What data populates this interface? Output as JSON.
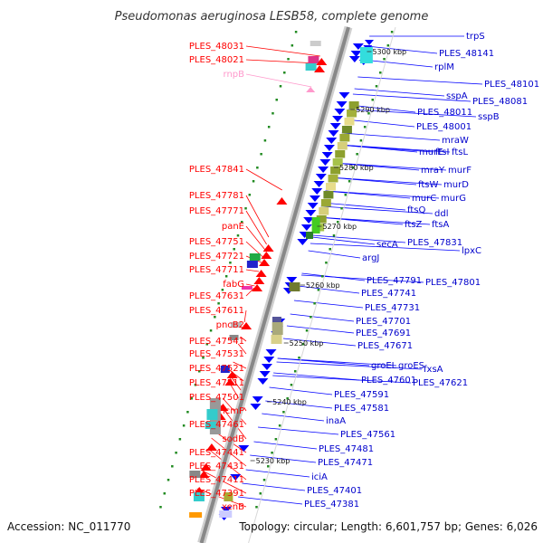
{
  "title": "Pseudomonas aeruginosa LESB58, complete genome",
  "footer": {
    "accession": "Accession: NC_011770",
    "topology": "Topology: circular; Length: 6,601,757 bp; Genes: 6,026"
  },
  "colors": {
    "forward_gene": "#ff0000",
    "reverse_gene": "#0000ff",
    "rna_gene": "#ff99cc",
    "backbone": "#888888",
    "tick": "#228b22"
  },
  "scale_labels": [
    "5300 kbp",
    "5290 kbp",
    "5280 kbp",
    "5270 kbp",
    "5260 kbp",
    "5250 kbp",
    "5240 kbp",
    "5230 kbp"
  ],
  "left_labels": [
    "PLES_48031",
    "PLES_48021",
    "rnpB",
    "PLES_47841",
    "PLES_47781",
    "PLES_47771",
    "panE",
    "PLES_47751",
    "PLES_47721",
    "PLES_47711",
    "fabG",
    "PLES_47631",
    "PLES_47611",
    "pncB2",
    "PLES_47541",
    "PLES_47531",
    "PLES_47521",
    "PLES_47511",
    "PLES_47501",
    "icmP",
    "PLES_47461",
    "sodB",
    "PLES_47441",
    "PLES_47431",
    "PLES_47411",
    "PLES_47391",
    "xenB"
  ],
  "right_labels": [
    "trpS",
    "PLES_48141",
    "rplM",
    "PLES_48101",
    "sspA",
    "PLES_48081",
    "PLES_48011",
    "sspB",
    "PLES_48001",
    "mraW",
    "murE",
    "ftsI",
    "ftsL",
    "mraY",
    "murF",
    "ftsW",
    "murD",
    "murC",
    "murG",
    "ftsQ",
    "ddl",
    "ftsZ",
    "ftsA",
    "secA",
    "PLES_47831",
    "lpxC",
    "argJ",
    "PLES_47791",
    "PLES_47801",
    "PLES_47741",
    "PLES_47731",
    "PLES_47701",
    "PLES_47691",
    "PLES_47671",
    "groEL",
    "groES",
    "fxsA",
    "PLES_47601",
    "PLES_47621",
    "PLES_47591",
    "PLES_47581",
    "inaA",
    "PLES_47561",
    "PLES_47481",
    "PLES_47471",
    "iciA",
    "PLES_47401",
    "PLES_47381"
  ]
}
